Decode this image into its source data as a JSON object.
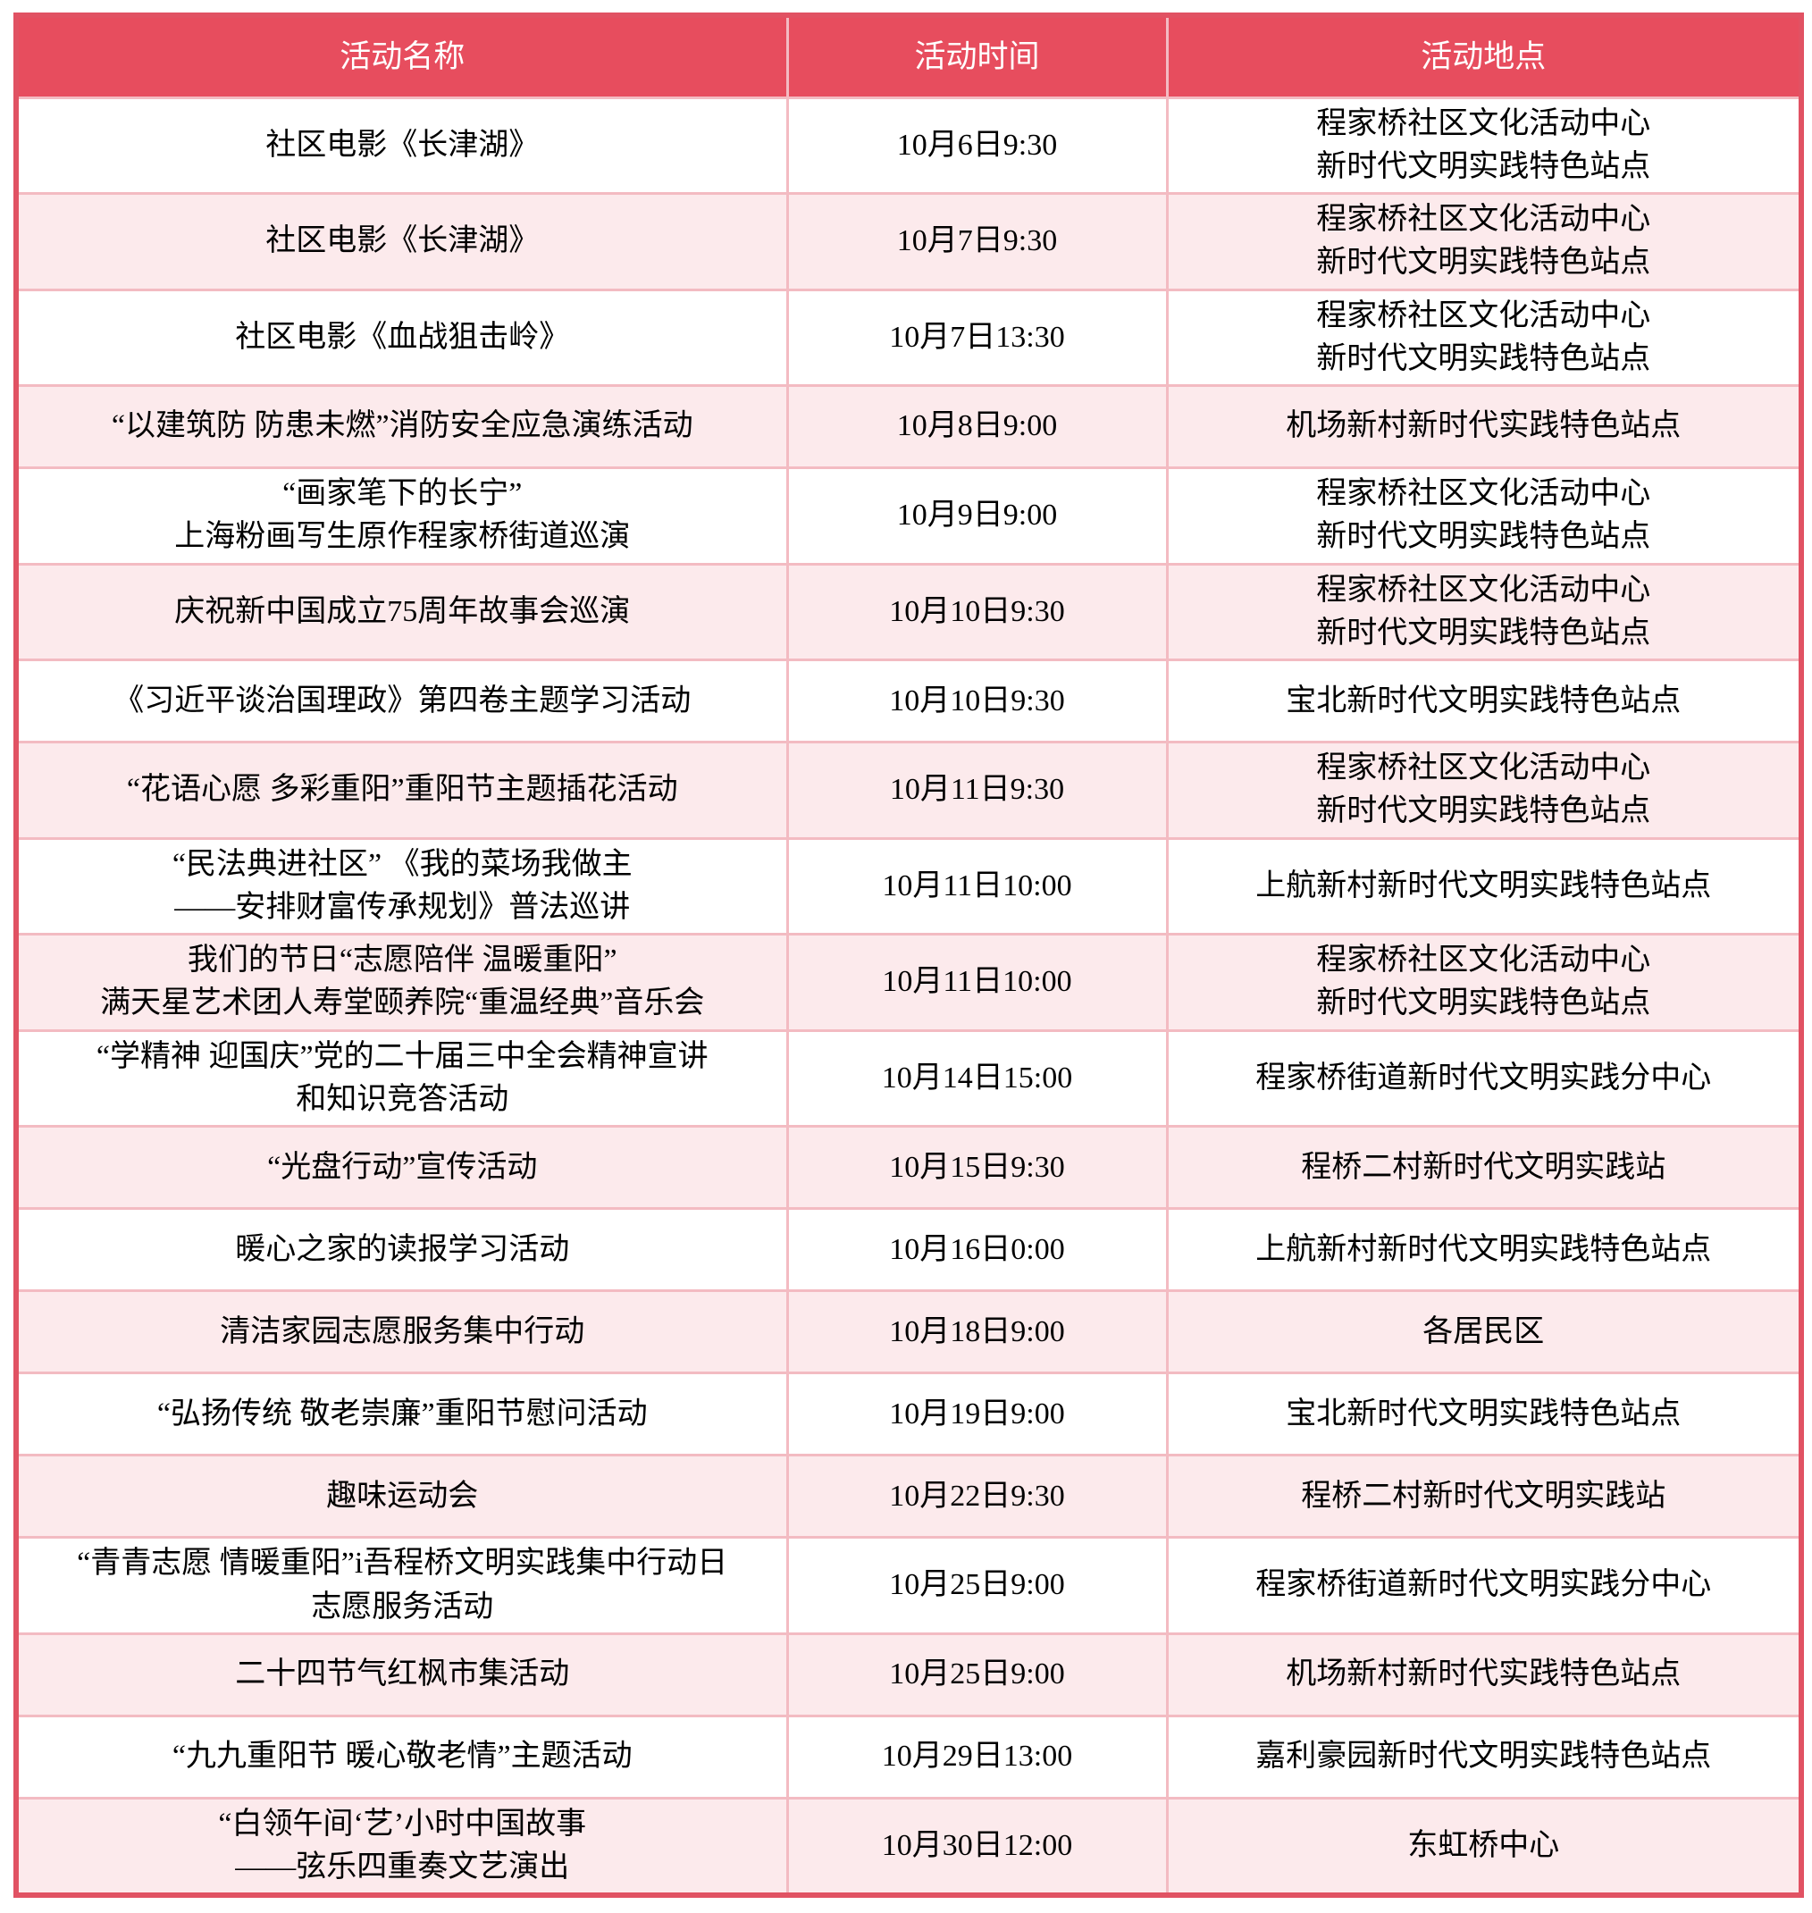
{
  "colors": {
    "header_bg": "#E74D5E",
    "header_text": "#FFFFFF",
    "row_alt_bg": "#FCEAEC",
    "inner_border": "#F3BBC2",
    "outer_border": "#E15263",
    "body_text": "#000000"
  },
  "table": {
    "columns": [
      "活动名称",
      "活动时间",
      "活动地点"
    ],
    "rows": [
      {
        "name": [
          "社区电影《长津湖》"
        ],
        "time": "10月6日9:30",
        "location": [
          "程家桥社区文化活动中心",
          "新时代文明实践特色站点"
        ]
      },
      {
        "name": [
          "社区电影《长津湖》"
        ],
        "time": "10月7日9:30",
        "location": [
          "程家桥社区文化活动中心",
          "新时代文明实践特色站点"
        ]
      },
      {
        "name": [
          "社区电影《血战狙击岭》"
        ],
        "time": "10月7日13:30",
        "location": [
          "程家桥社区文化活动中心",
          "新时代文明实践特色站点"
        ]
      },
      {
        "name": [
          "“以建筑防 防患未燃”消防安全应急演练活动"
        ],
        "time": "10月8日9:00",
        "location": [
          "机场新村新时代实践特色站点"
        ]
      },
      {
        "name": [
          "“画家笔下的长宁”",
          "上海粉画写生原作程家桥街道巡演"
        ],
        "time": "10月9日9:00",
        "location": [
          "程家桥社区文化活动中心",
          "新时代文明实践特色站点"
        ]
      },
      {
        "name": [
          "庆祝新中国成立75周年故事会巡演"
        ],
        "time": "10月10日9:30",
        "location": [
          "程家桥社区文化活动中心",
          "新时代文明实践特色站点"
        ]
      },
      {
        "name": [
          "《习近平谈治国理政》第四卷主题学习活动"
        ],
        "time": "10月10日9:30",
        "location": [
          "宝北新时代文明实践特色站点"
        ]
      },
      {
        "name": [
          "“花语心愿 多彩重阳”重阳节主题插花活动"
        ],
        "time": "10月11日9:30",
        "location": [
          "程家桥社区文化活动中心",
          "新时代文明实践特色站点"
        ]
      },
      {
        "name": [
          "“民法典进社区” 《我的菜场我做主",
          "——安排财富传承规划》普法巡讲"
        ],
        "time": "10月11日10:00",
        "location": [
          "上航新村新时代文明实践特色站点"
        ]
      },
      {
        "name": [
          "我们的节日“志愿陪伴 温暖重阳”",
          "满天星艺术团人寿堂颐养院“重温经典”音乐会"
        ],
        "time": "10月11日10:00",
        "location": [
          "程家桥社区文化活动中心",
          "新时代文明实践特色站点"
        ]
      },
      {
        "name": [
          "“学精神 迎国庆”党的二十届三中全会精神宣讲",
          "和知识竞答活动"
        ],
        "time": "10月14日15:00",
        "location": [
          "程家桥街道新时代文明实践分中心"
        ]
      },
      {
        "name": [
          "“光盘行动”宣传活动"
        ],
        "time": "10月15日9:30",
        "location": [
          "程桥二村新时代文明实践站"
        ]
      },
      {
        "name": [
          "暖心之家的读报学习活动"
        ],
        "time": "10月16日0:00",
        "location": [
          "上航新村新时代文明实践特色站点"
        ]
      },
      {
        "name": [
          "清洁家园志愿服务集中行动"
        ],
        "time": "10月18日9:00",
        "location": [
          "各居民区"
        ]
      },
      {
        "name": [
          "“弘扬传统 敬老崇廉”重阳节慰问活动"
        ],
        "time": "10月19日9:00",
        "location": [
          "宝北新时代文明实践特色站点"
        ]
      },
      {
        "name": [
          "趣味运动会"
        ],
        "time": "10月22日9:30",
        "location": [
          "程桥二村新时代文明实践站"
        ]
      },
      {
        "name": [
          "“青青志愿 情暖重阳”i吾程桥文明实践集中行动日",
          "志愿服务活动"
        ],
        "time": "10月25日9:00",
        "location": [
          "程家桥街道新时代文明实践分中心"
        ]
      },
      {
        "name": [
          "二十四节气红枫市集活动"
        ],
        "time": "10月25日9:00",
        "location": [
          "机场新村新时代实践特色站点"
        ]
      },
      {
        "name": [
          "“九九重阳节 暖心敬老情”主题活动"
        ],
        "time": "10月29日13:00",
        "location": [
          "嘉利豪园新时代文明实践特色站点"
        ]
      },
      {
        "name": [
          "“白领午间‘艺’小时中国故事",
          "——弦乐四重奏文艺演出"
        ],
        "time": "10月30日12:00",
        "location": [
          "东虹桥中心"
        ]
      }
    ]
  }
}
